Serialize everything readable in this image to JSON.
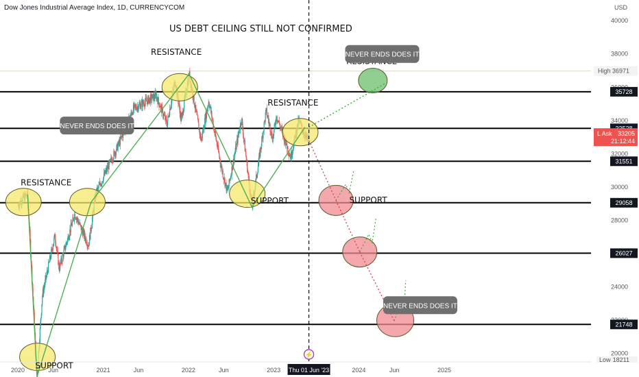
{
  "chart_data": {
    "type": "line",
    "title": "Dow Jones Industrial Average Index, 1D, CURRENCYCOM",
    "currency": "USD",
    "headline": "US DEBT CEILING STILL NOT CONFIRMED",
    "x_ticks": [
      "2020",
      "Jun",
      "2021",
      "Jun",
      "2022",
      "Jun",
      "2023",
      "Thu 01 Jun '23",
      "2024",
      "Jun",
      "2025"
    ],
    "y_ticks": [
      20000,
      22000,
      24000,
      26000,
      28000,
      30000,
      32000,
      34000,
      36000,
      38000,
      40000
    ],
    "ylim": [
      19000,
      40500
    ],
    "price_series": {
      "name": "",
      "points": [
        [
          "2020-01-02",
          28900
        ],
        [
          "2020-01-20",
          29300
        ],
        [
          "2020-02-12",
          29550
        ],
        [
          "2020-02-28",
          25400
        ],
        [
          "2020-03-23",
          18600
        ],
        [
          "2020-04-15",
          23500
        ],
        [
          "2020-06-08",
          27100
        ],
        [
          "2020-06-26",
          25100
        ],
        [
          "2020-09-01",
          28400
        ],
        [
          "2020-10-30",
          26500
        ],
        [
          "2020-11-30",
          29600
        ],
        [
          "2021-01-15",
          31000
        ],
        [
          "2021-03-15",
          32800
        ],
        [
          "2021-05-10",
          34700
        ],
        [
          "2021-08-15",
          35500
        ],
        [
          "2021-10-01",
          33800
        ],
        [
          "2021-11-05",
          36400
        ],
        [
          "2021-12-01",
          34000
        ],
        [
          "2022-01-04",
          36800
        ],
        [
          "2022-02-24",
          32800
        ],
        [
          "2022-03-29",
          35200
        ],
        [
          "2022-05-20",
          31300
        ],
        [
          "2022-06-17",
          29700
        ],
        [
          "2022-08-16",
          34100
        ],
        [
          "2022-09-30",
          28800
        ],
        [
          "2022-11-30",
          34600
        ],
        [
          "2022-12-28",
          32900
        ],
        [
          "2023-01-13",
          34300
        ],
        [
          "2023-03-15",
          31800
        ],
        [
          "2023-04-18",
          34000
        ],
        [
          "2023-05-25",
          32800
        ],
        [
          "2023-06-01",
          33205
        ]
      ]
    },
    "trend_lines": [
      [
        [
          "2020-02-12",
          29550
        ],
        [
          "2020-03-23",
          18600
        ]
      ],
      [
        [
          "2020-03-23",
          18600
        ],
        [
          "2020-11-10",
          29100
        ]
      ],
      [
        [
          "2020-11-10",
          29100
        ],
        [
          "2022-01-04",
          36800
        ]
      ],
      [
        [
          "2022-01-04",
          36800
        ],
        [
          "2022-09-30",
          28800
        ]
      ],
      [
        [
          "2022-09-30",
          28800
        ],
        [
          "2023-05-15",
          33600
        ]
      ]
    ],
    "horizontal_levels": [
      35728,
      33528,
      31551,
      29058,
      26027,
      21748
    ],
    "forecast_up": [
      [
        "2023-06-01",
        33600
      ],
      [
        "2024-04-20",
        36200
      ]
    ],
    "forecast_down": [
      [
        [
          "2023-06-01",
          32800
        ],
        [
          "2023-09-25",
          29200
        ]
      ],
      [
        [
          "2023-09-25",
          29200
        ],
        [
          "2024-01-05",
          26100
        ]
      ],
      [
        [
          "2024-01-05",
          26100
        ],
        [
          "2024-06-01",
          21950
        ]
      ]
    ],
    "forecast_bounces": [
      [
        [
          "2023-09-25",
          29200
        ],
        [
          "2023-12-10",
          31000
        ]
      ],
      [
        [
          "2024-01-05",
          26100
        ],
        [
          "2024-03-15",
          28200
        ]
      ],
      [
        [
          "2024-06-01",
          21950
        ],
        [
          "2024-07-20",
          24400
        ]
      ]
    ],
    "circles": [
      {
        "date": "2020-01-25",
        "value": 29100,
        "color": "yellow"
      },
      {
        "date": "2020-10-25",
        "value": 29100,
        "color": "yellow"
      },
      {
        "date": "2020-03-25",
        "value": 19800,
        "color": "yellow"
      },
      {
        "date": "2021-11-25",
        "value": 36000,
        "color": "yellow"
      },
      {
        "date": "2022-09-10",
        "value": 29600,
        "color": "yellow"
      },
      {
        "date": "2023-04-25",
        "value": 33300,
        "color": "yellow"
      },
      {
        "date": "2024-03-01",
        "value": 36400,
        "color": "green"
      },
      {
        "date": "2023-09-25",
        "value": 29200,
        "color": "red"
      },
      {
        "date": "2024-01-05",
        "value": 26100,
        "color": "red"
      },
      {
        "date": "2024-06-05",
        "value": 22000,
        "color": "red"
      }
    ],
    "annotations": [
      {
        "text": "RESISTANCE",
        "date": "2021-11-10",
        "value": 37950
      },
      {
        "text": "RESISTANCE",
        "date": "2023-03-25",
        "value": 34900
      },
      {
        "text": "RESISTANCE",
        "date": "2020-05-01",
        "value": 30100
      },
      {
        "text": "RESISTANCE",
        "date": "2024-02-25",
        "value": 37400
      },
      {
        "text": "SUPPORT",
        "date": "2022-12-15",
        "value": 29000
      },
      {
        "text": "SUPPORT",
        "date": "2024-02-10",
        "value": 29050
      },
      {
        "text": "SUPPORT",
        "date": "2020-06-05",
        "value": 19100
      }
    ],
    "callouts": [
      {
        "text": "NEVER ENDS DOES IT",
        "date": "2024-04-10",
        "value": 38000
      },
      {
        "text": "NEVER ENDS DOES IT",
        "date": "2020-12-05",
        "value": 33700
      },
      {
        "text": "NEVER ENDS DOES IT",
        "date": "2024-09-20",
        "value": 22900
      }
    ],
    "high": {
      "label": "High",
      "value": 36971
    },
    "low": {
      "label": "Low",
      "value": 18211
    },
    "last_price": {
      "label": "L Ask",
      "value": 33205,
      "timer": "21:12:44"
    },
    "marker_date": "2023-06-01",
    "colors": {
      "support_circle": "#f5e86a",
      "resistance_circle_up": "#6cbf6c",
      "forecast_circle": "#f08a92",
      "trend_line": "#4caf50",
      "up_candle": "#26a69a",
      "down_candle": "#ef5350",
      "high_line": "#d4d94a"
    }
  }
}
